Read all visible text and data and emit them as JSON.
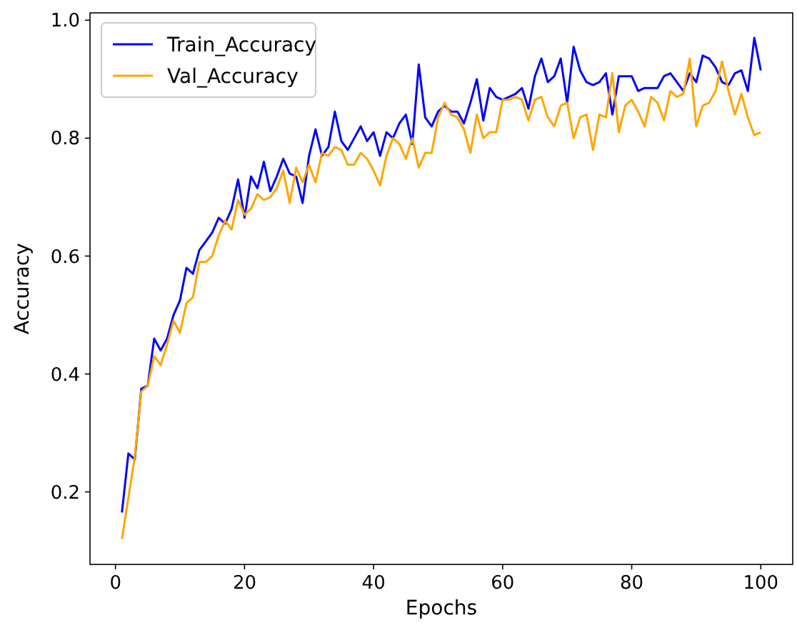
{
  "chart_data": {
    "type": "line",
    "xlabel": "Epochs",
    "ylabel": "Accuracy",
    "x": [
      1,
      2,
      3,
      4,
      5,
      6,
      7,
      8,
      9,
      10,
      11,
      12,
      13,
      14,
      15,
      16,
      17,
      18,
      19,
      20,
      21,
      22,
      23,
      24,
      25,
      26,
      27,
      28,
      29,
      30,
      31,
      32,
      33,
      34,
      35,
      36,
      37,
      38,
      39,
      40,
      41,
      42,
      43,
      44,
      45,
      46,
      47,
      48,
      49,
      50,
      51,
      52,
      53,
      54,
      55,
      56,
      57,
      58,
      59,
      60,
      61,
      62,
      63,
      64,
      65,
      66,
      67,
      68,
      69,
      70,
      71,
      72,
      73,
      74,
      75,
      76,
      77,
      78,
      79,
      80,
      81,
      82,
      83,
      84,
      85,
      86,
      87,
      88,
      89,
      90,
      91,
      92,
      93,
      94,
      95,
      96,
      97,
      98,
      99,
      100
    ],
    "series": [
      {
        "name": "Train_Accuracy",
        "color": "#0000ff",
        "values": [
          0.165,
          0.265,
          0.255,
          0.375,
          0.38,
          0.46,
          0.44,
          0.46,
          0.5,
          0.525,
          0.58,
          0.57,
          0.61,
          0.625,
          0.64,
          0.665,
          0.655,
          0.68,
          0.73,
          0.665,
          0.735,
          0.715,
          0.76,
          0.71,
          0.735,
          0.765,
          0.74,
          0.735,
          0.69,
          0.77,
          0.815,
          0.77,
          0.785,
          0.845,
          0.795,
          0.78,
          0.8,
          0.82,
          0.795,
          0.81,
          0.77,
          0.81,
          0.8,
          0.825,
          0.84,
          0.79,
          0.925,
          0.835,
          0.82,
          0.845,
          0.855,
          0.845,
          0.845,
          0.825,
          0.86,
          0.9,
          0.83,
          0.885,
          0.87,
          0.865,
          0.87,
          0.875,
          0.885,
          0.85,
          0.905,
          0.935,
          0.895,
          0.905,
          0.935,
          0.86,
          0.955,
          0.915,
          0.895,
          0.89,
          0.895,
          0.91,
          0.84,
          0.905,
          0.905,
          0.905,
          0.88,
          0.885,
          0.885,
          0.885,
          0.905,
          0.91,
          0.895,
          0.88,
          0.91,
          0.895,
          0.94,
          0.935,
          0.92,
          0.895,
          0.89,
          0.91,
          0.915,
          0.88,
          0.97,
          0.915
        ]
      },
      {
        "name": "Val_Accuracy",
        "color": "#ffa500",
        "values": [
          0.12,
          0.19,
          0.26,
          0.37,
          0.38,
          0.43,
          0.415,
          0.45,
          0.49,
          0.47,
          0.52,
          0.53,
          0.59,
          0.59,
          0.6,
          0.635,
          0.66,
          0.645,
          0.695,
          0.67,
          0.68,
          0.705,
          0.695,
          0.7,
          0.715,
          0.745,
          0.69,
          0.75,
          0.725,
          0.755,
          0.725,
          0.775,
          0.77,
          0.785,
          0.78,
          0.755,
          0.755,
          0.775,
          0.765,
          0.745,
          0.72,
          0.77,
          0.8,
          0.79,
          0.765,
          0.8,
          0.75,
          0.775,
          0.775,
          0.835,
          0.86,
          0.84,
          0.835,
          0.815,
          0.775,
          0.84,
          0.8,
          0.81,
          0.81,
          0.865,
          0.865,
          0.87,
          0.865,
          0.83,
          0.865,
          0.87,
          0.835,
          0.82,
          0.855,
          0.86,
          0.8,
          0.835,
          0.84,
          0.78,
          0.84,
          0.835,
          0.91,
          0.81,
          0.855,
          0.865,
          0.845,
          0.82,
          0.87,
          0.86,
          0.83,
          0.88,
          0.87,
          0.875,
          0.935,
          0.82,
          0.855,
          0.86,
          0.88,
          0.93,
          0.88,
          0.84,
          0.875,
          0.835,
          0.805,
          0.81
        ]
      }
    ],
    "xlim": [
      -3.95,
      104.95
    ],
    "ylim": [
      0.077,
      1.0125
    ],
    "xticks": [
      0,
      20,
      40,
      60,
      80,
      100
    ],
    "yticks": [
      {
        "value": 0.2,
        "label": "0.2"
      },
      {
        "value": 0.4,
        "label": "0.4"
      },
      {
        "value": 0.6,
        "label": "0.6"
      },
      {
        "value": 0.8,
        "label": "0.8"
      },
      {
        "value": 1.0,
        "label": "1.0"
      }
    ],
    "legend": "top left",
    "grid": false
  }
}
